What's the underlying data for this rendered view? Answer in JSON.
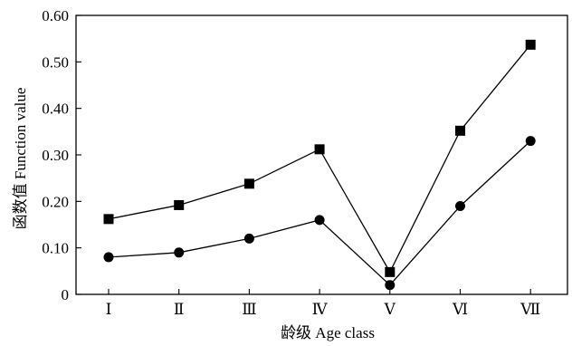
{
  "chart_data": {
    "type": "line",
    "categories": [
      "Ⅰ",
      "Ⅱ",
      "Ⅲ",
      "Ⅳ",
      "Ⅴ",
      "Ⅵ",
      "Ⅶ"
    ],
    "series": [
      {
        "marker": "square",
        "color": "#000000",
        "values": [
          0.162,
          0.192,
          0.238,
          0.312,
          0.048,
          0.352,
          0.537
        ]
      },
      {
        "marker": "circle",
        "color": "#000000",
        "values": [
          0.08,
          0.09,
          0.12,
          0.16,
          0.02,
          0.19,
          0.33
        ]
      }
    ],
    "xlabel": "龄级 Age class",
    "ylabel": "函数值 Function value",
    "ylim": [
      0,
      0.6
    ],
    "yticks": [
      0,
      0.1,
      0.2,
      0.3,
      0.4,
      0.5,
      0.6
    ],
    "ytick_labels": [
      "0",
      "0.10",
      "0.20",
      "0.30",
      "0.40",
      "0.50",
      "0.60"
    ],
    "grid": false,
    "legend": "none"
  }
}
